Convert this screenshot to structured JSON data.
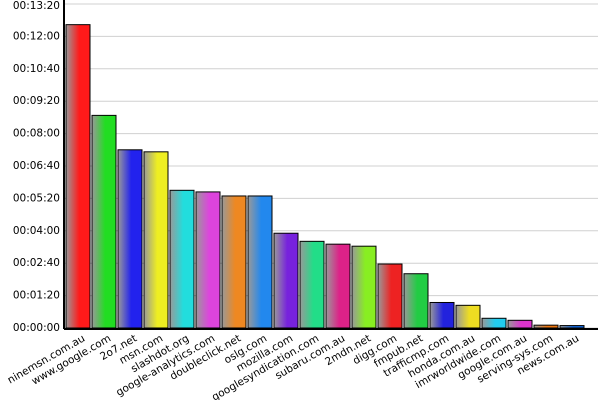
{
  "chart_data": {
    "type": "bar",
    "categories": [
      "ninemsn.com.au",
      "www.google.com",
      "2o7.net",
      "msn.com",
      "slashdot.org",
      "google-analytics.com",
      "doubleclick.net",
      "oslg.com",
      "mozilla.com",
      "googlesyndication.com",
      "subaru.com.au",
      "2mdn.net",
      "digg.com",
      "fmpub.net",
      "trafficmp.com",
      "honda.com.au",
      "imrworldwide.com",
      "google.com.au",
      "serving-sys.com",
      "news.com.au"
    ],
    "values": [
      749,
      525,
      440,
      435,
      340,
      336,
      326,
      326,
      234,
      214,
      207,
      202,
      158,
      134,
      63,
      56,
      24,
      19,
      7,
      6
    ],
    "colors": [
      "#ff1a1a",
      "#22dd22",
      "#2222ee",
      "#eeee22",
      "#22dddd",
      "#dd44dd",
      "#ee8822",
      "#2288ee",
      "#7722dd",
      "#22dd88",
      "#dd2288",
      "#88ee22",
      "#ee2222",
      "#22cc44",
      "#2222dd",
      "#eedd22",
      "#22ccee",
      "#dd33cc",
      "#ee7711",
      "#1166dd"
    ],
    "ylim": [
      0,
      800
    ],
    "yticks": [
      {
        "value": 0,
        "label": "00:00:00"
      },
      {
        "value": 80,
        "label": "00:01:20"
      },
      {
        "value": 160,
        "label": "00:02:40"
      },
      {
        "value": 240,
        "label": "00:04:00"
      },
      {
        "value": 320,
        "label": "00:05:20"
      },
      {
        "value": 400,
        "label": "00:06:40"
      },
      {
        "value": 480,
        "label": "00:08:00"
      },
      {
        "value": 560,
        "label": "00:09:20"
      },
      {
        "value": 640,
        "label": "00:10:40"
      },
      {
        "value": 720,
        "label": "00:12:00"
      },
      {
        "value": 800,
        "label": "00:13:20"
      }
    ],
    "grid": true
  }
}
